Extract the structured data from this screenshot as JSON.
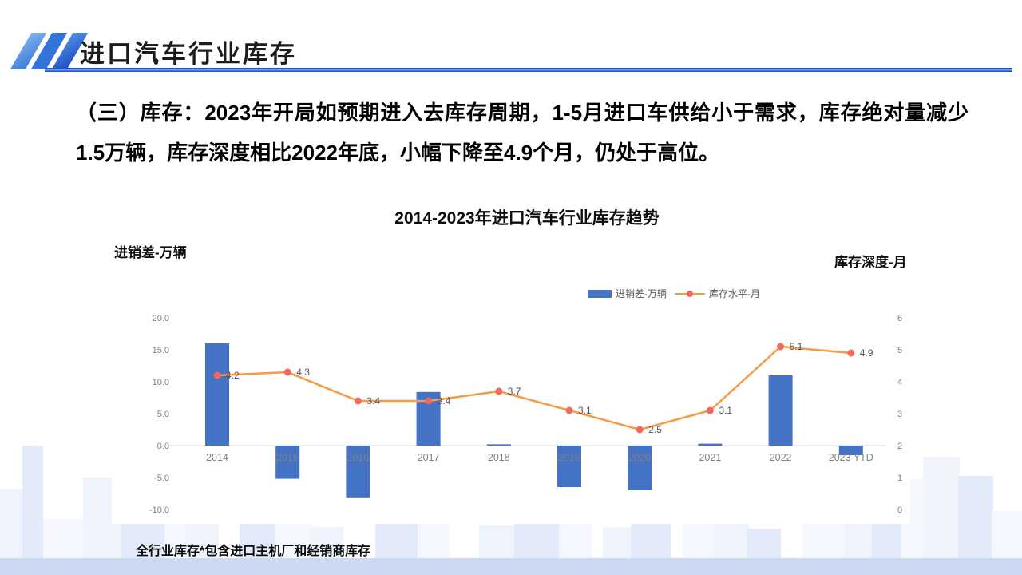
{
  "header": {
    "title": "进口汽车行业库存"
  },
  "body": {
    "text": "（三）库存：2023年开局如预期进入去库存周期，1-5月进口车供给小于需求，库存绝对量减少1.5万辆，库存深度相比2022年底，小幅下降至4.9个月，仍处于高位。"
  },
  "footnote": "全行业库存*包含进口主机厂和经销商库存",
  "colors": {
    "bar": "#4472C4",
    "line": "#F59B45",
    "marker": "#F2695C",
    "axis_text": "#808080",
    "data_label": "#555555",
    "zero_line": "#D8D8D8",
    "header_rule": "#1B57C8",
    "skyline_band": "#CBD9F2"
  },
  "chart_data": {
    "type": "bar",
    "subtype": "combo bar+line, dual axis",
    "title": "2014-2023年进口汽车行业库存趋势",
    "left_axis_title": "进销差-万辆",
    "right_axis_title": "库存深度-月",
    "categories": [
      "2014",
      "2015",
      "2016",
      "2017",
      "2018",
      "2019",
      "2020",
      "2021",
      "2022",
      "2023 YTD"
    ],
    "series": [
      {
        "name": "进销差-万辆",
        "kind": "bar",
        "axis": "left",
        "color": "#4472C4",
        "values": [
          16.0,
          -5.2,
          -8.1,
          8.4,
          0.2,
          -6.5,
          -7.0,
          0.3,
          11.0,
          -1.5
        ]
      },
      {
        "name": "库存水平-月",
        "kind": "line",
        "axis": "right",
        "color": "#F59B45",
        "marker_color": "#F2695C",
        "values": [
          4.2,
          4.3,
          3.4,
          3.4,
          3.7,
          3.1,
          2.5,
          3.1,
          5.1,
          4.9
        ],
        "labels": [
          "4.2",
          "4.3",
          "3.4",
          "3.4",
          "3.7",
          "3.1",
          "2.5",
          "3.1",
          "5.1",
          "4.9"
        ]
      }
    ],
    "left_axis": {
      "ticks": [
        "20.0",
        "15.0",
        "10.0",
        "5.0",
        "0.0",
        "-5.0",
        "-10.0"
      ],
      "min": -10,
      "max": 20
    },
    "right_axis": {
      "ticks": [
        "6",
        "5",
        "4",
        "3",
        "2",
        "1",
        "0"
      ],
      "min": 0,
      "max": 6
    },
    "legend": [
      "进销差-万辆",
      "库存水平-月"
    ],
    "grid": "none (zero baseline only)",
    "legend_position": "top-right of plot"
  }
}
